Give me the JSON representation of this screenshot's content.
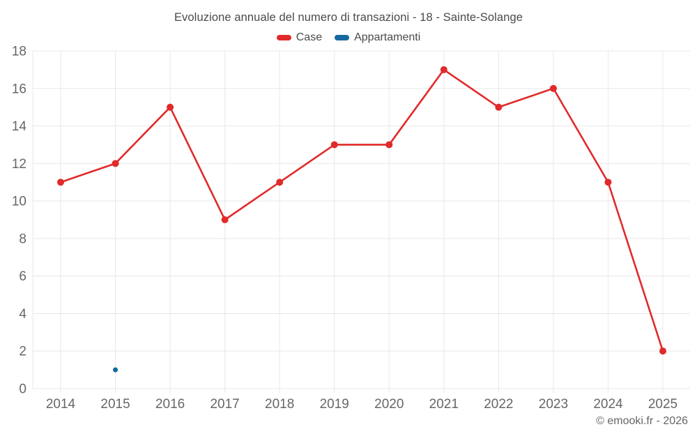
{
  "page": {
    "copyright": "© emooki.fr - 2026"
  },
  "chart_data": {
    "type": "line",
    "title": "Evoluzione annuale del numero di transazioni - 18 - Sainte-Solange",
    "categories": [
      "2014",
      "2015",
      "2016",
      "2017",
      "2018",
      "2019",
      "2020",
      "2021",
      "2022",
      "2023",
      "2024",
      "2025"
    ],
    "series": [
      {
        "name": "Case",
        "color": "#e12a2a",
        "values": [
          11,
          12,
          15,
          9,
          11,
          13,
          13,
          17,
          15,
          16,
          11,
          2
        ],
        "marker_radius": 5,
        "line_width": 2.6,
        "draw_line": true
      },
      {
        "name": "Appartamenti",
        "color": "#16699f",
        "values": [
          null,
          1,
          null,
          null,
          null,
          null,
          null,
          null,
          null,
          null,
          null,
          null
        ],
        "marker_radius": 3.5,
        "line_width": 2.6,
        "draw_line": false
      }
    ],
    "ylim": [
      0,
      18
    ],
    "y_tick_step": 2,
    "y_ticks": [
      0,
      2,
      4,
      6,
      8,
      10,
      12,
      14,
      16,
      18
    ],
    "grid": true,
    "legend_position": "top",
    "grid_color": "#e8e8e8",
    "axis_label_color": "#666666"
  }
}
